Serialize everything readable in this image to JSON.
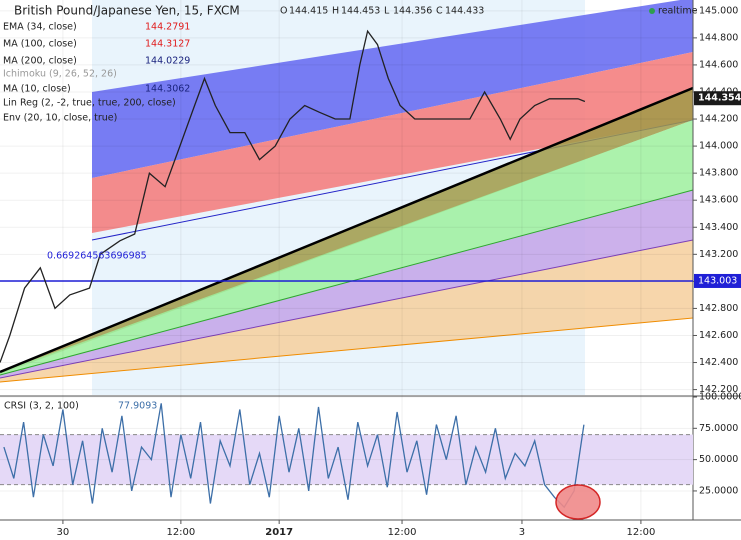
{
  "chart_data": [
    {
      "type": "line",
      "title": "British Pound/Japanese Yen, 15, FXCM",
      "ohlc": [
        {
          "label": "O",
          "value": 144.415
        },
        {
          "label": "H",
          "value": 144.453
        },
        {
          "label": "L",
          "value": 144.356
        },
        {
          "label": "C",
          "value": 144.433
        }
      ],
      "indicators": [
        {
          "name": "EMA (34, close)",
          "value": 144.2791,
          "color": "#e01b1b"
        },
        {
          "name": "MA (100, close)",
          "value": 144.3127,
          "color": "#e01b1b"
        },
        {
          "name": "MA (200, close)",
          "value": 144.0229,
          "color": "#1a237e"
        },
        {
          "name": "Ichimoku (9, 26, 52, 26)"
        },
        {
          "name": "MA (10, close)",
          "value": 144.3062,
          "color": "#1a237e"
        },
        {
          "name": "Lin Reg (2, -2, true, true, 200, close)"
        },
        {
          "name": "Env (20, 10, close, true)"
        }
      ],
      "x": [
        -6.4,
        -5.4,
        -3.9,
        -2.3,
        -0.8,
        0.7,
        2.7,
        3.8,
        5.8,
        7.3,
        8.8,
        10.4,
        11.9,
        13.4,
        14.4,
        15.5,
        17.0,
        18.5,
        20.0,
        21.6,
        23.1,
        24.6,
        26.1,
        27.7,
        29.2,
        30.2,
        31.0,
        32.0,
        33.1,
        34.3,
        35.8,
        37.3,
        39.4,
        41.4,
        42.9,
        44.5,
        45.5,
        46.5,
        48.0,
        49.5,
        51.1,
        52.4,
        53.1
      ],
      "values": [
        142.4,
        142.6,
        142.95,
        143.1,
        142.8,
        142.9,
        142.95,
        143.2,
        143.3,
        143.35,
        143.8,
        143.7,
        144.0,
        144.3,
        144.5,
        144.3,
        144.1,
        144.1,
        143.9,
        144.0,
        144.2,
        144.3,
        144.25,
        144.2,
        144.2,
        144.6,
        144.85,
        144.75,
        144.5,
        144.3,
        144.2,
        144.2,
        144.2,
        144.2,
        144.4,
        144.2,
        144.05,
        144.2,
        144.3,
        144.35,
        144.35,
        144.35,
        144.33
      ],
      "color": "#222222",
      "xlim": [
        -6.4,
        64.1
      ],
      "xticks": [
        {
          "value": 0,
          "label": "30"
        },
        {
          "value": 12,
          "label": "12:00"
        },
        {
          "value": 22,
          "label": "2017"
        },
        {
          "value": 34.5,
          "label": "12:00"
        },
        {
          "value": 46.7,
          "label": "3"
        },
        {
          "value": 58.8,
          "label": "12:00"
        }
      ],
      "ylim": [
        142.16,
        145.08
      ],
      "yticks": [
        {
          "value": 142.2,
          "label": "142.200"
        },
        {
          "value": 142.4,
          "label": "142.400"
        },
        {
          "value": 142.6,
          "label": "142.600"
        },
        {
          "value": 142.8,
          "label": "142.800"
        },
        {
          "value": 143.0,
          "label": "143.000"
        },
        {
          "value": 143.2,
          "label": "143.200"
        },
        {
          "value": 143.4,
          "label": "143.400"
        },
        {
          "value": 143.6,
          "label": "143.600"
        },
        {
          "value": 143.8,
          "label": "143.800"
        },
        {
          "value": 144.0,
          "label": "144.000"
        },
        {
          "value": 144.2,
          "label": "144.200"
        },
        {
          "value": 144.4,
          "label": "144.400"
        },
        {
          "value": 144.6,
          "label": "144.600"
        },
        {
          "value": 144.8,
          "label": "144.800"
        },
        {
          "value": 145.0,
          "label": "145.000"
        }
      ],
      "hline": {
        "value": 143.003,
        "color": "#1f1fd6"
      },
      "last_price": 144.354,
      "annotation": "0.669264563696985",
      "status": "realtime",
      "grid": true
    },
    {
      "type": "line",
      "title": "CRSI (3, 2, 100)",
      "x": [
        -6,
        -5,
        -4,
        -3,
        -2,
        -1,
        0,
        1,
        2,
        3,
        4,
        5,
        6,
        7,
        8,
        9,
        10,
        11,
        12,
        13,
        14,
        15,
        16,
        17,
        18,
        19,
        20,
        21,
        22,
        23,
        24,
        25,
        26,
        27,
        28,
        29,
        30,
        31,
        32,
        33,
        34,
        35,
        36,
        37,
        38,
        39,
        40,
        41,
        42,
        43,
        44,
        45,
        46,
        47,
        48,
        49,
        50,
        51,
        52,
        53
      ],
      "values": [
        60,
        35,
        80,
        20,
        70,
        45,
        90,
        30,
        65,
        15,
        75,
        40,
        85,
        25,
        60,
        50,
        95,
        20,
        70,
        35,
        80,
        15,
        65,
        45,
        90,
        30,
        55,
        20,
        85,
        40,
        75,
        25,
        92,
        35,
        60,
        18,
        80,
        45,
        70,
        28,
        88,
        40,
        65,
        22,
        78,
        50,
        85,
        30,
        60,
        40,
        75,
        35,
        55,
        45,
        65,
        30,
        20,
        12,
        25,
        77.9093
      ],
      "color": "#3d6fa8",
      "xlim": [
        -6.4,
        64.1
      ],
      "ylim": [
        1.8,
        100
      ],
      "yticks": [
        {
          "value": 25,
          "label": "25.0000"
        },
        {
          "value": 50,
          "label": "50.0000"
        },
        {
          "value": 75,
          "label": "75.0000"
        },
        {
          "value": 100,
          "label": "100.0000"
        }
      ],
      "bands": [
        30,
        70
      ]
    }
  ]
}
